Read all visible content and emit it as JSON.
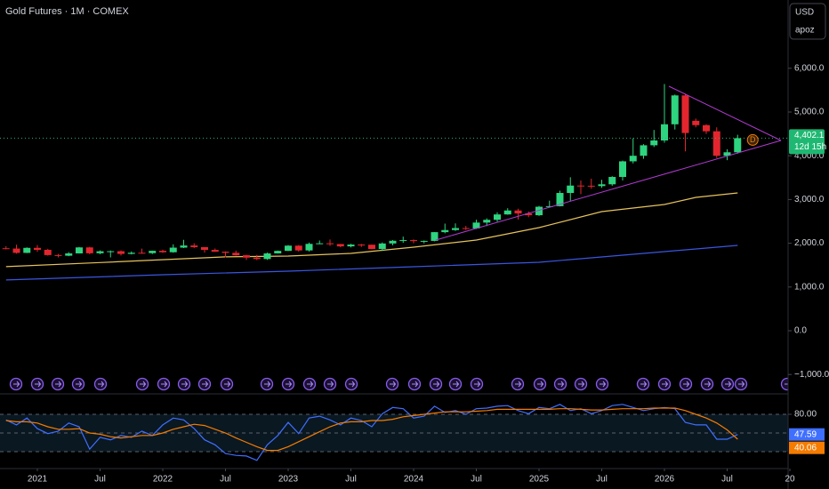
{
  "title": "Gold Futures · 1M · COMEX",
  "currency": "USD",
  "account": "apoz",
  "marker_text": "D",
  "chart_data": [
    {
      "type": "candlestick",
      "x": [
        "2020-10",
        "2020-11",
        "2020-12",
        "2021-01",
        "2021-02",
        "2021-03",
        "2021-04",
        "2021-05",
        "2021-06",
        "2021-07",
        "2021-08",
        "2021-09",
        "2021-10",
        "2021-11",
        "2021-12",
        "2022-01",
        "2022-02",
        "2022-03",
        "2022-04",
        "2022-05",
        "2022-06",
        "2022-07",
        "2022-08",
        "2022-09",
        "2022-10",
        "2022-11",
        "2022-12",
        "2023-01",
        "2023-02",
        "2023-03",
        "2023-04",
        "2023-05",
        "2023-06",
        "2023-07",
        "2023-08",
        "2023-09",
        "2023-10",
        "2023-11",
        "2023-12",
        "2024-01",
        "2024-02",
        "2024-03",
        "2024-04",
        "2024-05",
        "2024-06",
        "2024-07",
        "2024-08",
        "2024-09",
        "2024-10",
        "2024-11",
        "2024-12",
        "2025-01",
        "2025-02",
        "2025-03",
        "2025-04",
        "2025-05",
        "2025-06",
        "2025-07",
        "2025-08",
        "2025-09",
        "2025-10",
        "2025-11",
        "2025-12",
        "2026-01",
        "2026-02",
        "2026-03",
        "2026-04",
        "2026-05",
        "2026-06",
        "2026-07",
        "2026-08"
      ],
      "open": [
        1886,
        1879,
        1780,
        1895,
        1850,
        1730,
        1715,
        1768,
        1905,
        1771,
        1817,
        1818,
        1757,
        1783,
        1774,
        1828,
        1795,
        1900,
        1949,
        1911,
        1848,
        1807,
        1781,
        1726,
        1672,
        1640,
        1768,
        1826,
        1945,
        1836,
        1986,
        1999,
        1982,
        1929,
        1970,
        1966,
        1870,
        1995,
        2057,
        2072,
        2050,
        2054,
        2254,
        2302,
        2347,
        2339,
        2473,
        2536,
        2659,
        2749,
        2681,
        2641,
        2835,
        2848,
        3150,
        3319,
        3315,
        3307,
        3348,
        3516,
        3873,
        4000,
        4240,
        4350,
        4720,
        5380,
        4800,
        4700,
        4560,
        4000,
        4080
      ],
      "high": [
        1933,
        1966,
        1906,
        1960,
        1873,
        1755,
        1798,
        1916,
        1919,
        1836,
        1834,
        1836,
        1814,
        1877,
        1832,
        1853,
        1976,
        2078,
        2000,
        1911,
        1880,
        1814,
        1832,
        1736,
        1734,
        1786,
        1834,
        1959,
        1959,
        2015,
        2063,
        2085,
        1985,
        1988,
        1986,
        1970,
        2019,
        2074,
        2152,
        2088,
        2065,
        2256,
        2449,
        2454,
        2397,
        2538,
        2570,
        2708,
        2801,
        2790,
        2726,
        2853,
        2974,
        3201,
        3509,
        3435,
        3476,
        3451,
        3534,
        3891,
        4398,
        4265,
        4590,
        5640,
        5400,
        5420,
        4850,
        4720,
        4650,
        4150,
        4480
      ],
      "low": [
        1860,
        1764,
        1775,
        1803,
        1717,
        1677,
        1704,
        1765,
        1750,
        1750,
        1677,
        1721,
        1745,
        1761,
        1753,
        1780,
        1784,
        1890,
        1889,
        1786,
        1805,
        1676,
        1715,
        1618,
        1616,
        1620,
        1764,
        1823,
        1811,
        1811,
        1979,
        1942,
        1910,
        1905,
        1914,
        1859,
        1823,
        1954,
        2010,
        2002,
        1996,
        2046,
        2228,
        2282,
        2304,
        2326,
        2393,
        2493,
        2652,
        2541,
        2596,
        2625,
        2813,
        2844,
        2970,
        3123,
        3247,
        3268,
        3314,
        3436,
        3825,
        3930,
        4200,
        4300,
        4600,
        4100,
        4650,
        4500,
        3950,
        3900,
        4050
      ],
      "close": [
        1879,
        1780,
        1895,
        1850,
        1730,
        1715,
        1768,
        1905,
        1771,
        1817,
        1818,
        1757,
        1783,
        1774,
        1828,
        1795,
        1900,
        1949,
        1911,
        1848,
        1807,
        1781,
        1726,
        1672,
        1640,
        1768,
        1826,
        1945,
        1836,
        1986,
        1999,
        1982,
        1929,
        1970,
        1966,
        1870,
        1995,
        2057,
        2072,
        2050,
        2054,
        2254,
        2302,
        2347,
        2339,
        2473,
        2536,
        2659,
        2749,
        2681,
        2641,
        2835,
        2848,
        3150,
        3319,
        3315,
        3307,
        3348,
        3516,
        3873,
        4000,
        4240,
        4350,
        4720,
        5380,
        4520,
        4700,
        4560,
        4000,
        4080,
        4402.1
      ],
      "last_close_label": "4,402.1",
      "countdown": "12d 15h",
      "up_color": "#2ed47f",
      "down_color": "#e3262e",
      "last_color": "#1fb872",
      "overlays": [
        {
          "color": "#e6c35c",
          "x": [
            "2020-10",
            "2021-07",
            "2022-07",
            "2023-01",
            "2023-07",
            "2024-01",
            "2024-07",
            "2025-01",
            "2025-07",
            "2026-01",
            "2026-04",
            "2026-08"
          ],
          "values": [
            1465,
            1560,
            1690,
            1707,
            1768,
            1910,
            2073,
            2358,
            2724,
            2886,
            3049,
            3150
          ]
        },
        {
          "color": "#3a56e0",
          "x": [
            "2020-10",
            "2022-01",
            "2023-01",
            "2024-01",
            "2025-01",
            "2025-07",
            "2026-01",
            "2026-08"
          ],
          "values": [
            1160,
            1280,
            1362,
            1463,
            1565,
            1687,
            1809,
            1951
          ]
        }
      ],
      "ylim": [
        -1382,
        7561
      ],
      "yticks": [
        {
          "value": -1000,
          "label": "−1,000.0"
        },
        {
          "value": 0,
          "label": "0.0"
        },
        {
          "value": 1000,
          "label": "1,000.0"
        },
        {
          "value": 2000,
          "label": "2,000.0"
        },
        {
          "value": 3000,
          "label": "3,000.0"
        },
        {
          "value": 4000,
          "label": "4,000.0"
        },
        {
          "value": 5000,
          "label": "5,000.0"
        },
        {
          "value": 6000,
          "label": "6,000.0"
        }
      ]
    },
    {
      "type": "line",
      "x": [
        "2020-10",
        "2020-11",
        "2020-12",
        "2021-01",
        "2021-02",
        "2021-03",
        "2021-04",
        "2021-05",
        "2021-06",
        "2021-07",
        "2021-08",
        "2021-09",
        "2021-10",
        "2021-11",
        "2021-12",
        "2022-01",
        "2022-02",
        "2022-03",
        "2022-04",
        "2022-05",
        "2022-06",
        "2022-07",
        "2022-08",
        "2022-09",
        "2022-10",
        "2022-11",
        "2022-12",
        "2023-01",
        "2023-02",
        "2023-03",
        "2023-04",
        "2023-05",
        "2023-06",
        "2023-07",
        "2023-08",
        "2023-09",
        "2023-10",
        "2023-11",
        "2023-12",
        "2024-01",
        "2024-02",
        "2024-03",
        "2024-04",
        "2024-05",
        "2024-06",
        "2024-07",
        "2024-08",
        "2024-09",
        "2024-10",
        "2024-11",
        "2024-12",
        "2025-01",
        "2025-02",
        "2025-03",
        "2025-04",
        "2025-05",
        "2025-06",
        "2025-07",
        "2025-08",
        "2025-09",
        "2025-10",
        "2025-11",
        "2025-12",
        "2026-01",
        "2026-02",
        "2026-03",
        "2026-04",
        "2026-05",
        "2026-06",
        "2026-07",
        "2026-08"
      ],
      "series": [
        {
          "color": "#3f6fff",
          "values": [
            71,
            63,
            74,
            57,
            49,
            53,
            66,
            60,
            24,
            43,
            39,
            46,
            43,
            53,
            46,
            63,
            74,
            71,
            57,
            39,
            31,
            17,
            14,
            13,
            6,
            31,
            46,
            67,
            49,
            74,
            77,
            71,
            63,
            74,
            70,
            60,
            81,
            91,
            89,
            74,
            77,
            93,
            83,
            86,
            80,
            89,
            90,
            93,
            94,
            86,
            81,
            91,
            89,
            96,
            86,
            89,
            81,
            86,
            94,
            96,
            91,
            86,
            89,
            91,
            89,
            67,
            63,
            63,
            40,
            40,
            47.59
          ]
        },
        {
          "color": "#f57c00",
          "values": [
            70,
            68,
            68,
            66,
            60,
            56,
            56,
            57,
            50,
            48,
            44,
            42,
            44,
            46,
            46,
            50,
            56,
            60,
            64,
            62,
            56,
            50,
            42,
            35,
            28,
            22,
            22,
            28,
            36,
            44,
            52,
            60,
            66,
            68,
            68,
            70,
            70,
            72,
            76,
            78,
            80,
            82,
            84,
            84,
            84,
            85,
            86,
            88,
            88,
            88,
            88,
            88,
            88,
            89,
            89,
            88,
            87,
            87,
            88,
            89,
            89,
            89,
            90,
            90,
            90,
            86,
            80,
            74,
            66,
            55,
            40.06
          ]
        }
      ],
      "bands": [
        20,
        50,
        80
      ],
      "ylim": [
        -4.3,
        110
      ],
      "yticks": [
        {
          "value": 80,
          "label": "80.00"
        }
      ],
      "xticks": [
        {
          "value": "2021-01",
          "label": "2021"
        },
        {
          "value": "2021-07",
          "label": "Jul"
        },
        {
          "value": "2022-01",
          "label": "2022"
        },
        {
          "value": "2022-07",
          "label": "Jul"
        },
        {
          "value": "2023-01",
          "label": "2023"
        },
        {
          "value": "2023-07",
          "label": "Jul"
        },
        {
          "value": "2024-01",
          "label": "2024"
        },
        {
          "value": "2024-07",
          "label": "Jul"
        },
        {
          "value": "2025-01",
          "label": "2025"
        },
        {
          "value": "2025-07",
          "label": "Jul"
        },
        {
          "value": "2026-01",
          "label": "2026"
        },
        {
          "value": "2026-07",
          "label": "Jul"
        },
        {
          "value": "2027-01",
          "label": "20"
        }
      ]
    }
  ]
}
